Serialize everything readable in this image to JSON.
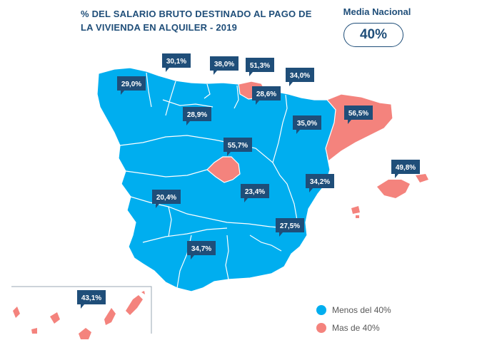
{
  "title": "% DEL SALARIO BRUTO DESTINADO AL PAGO DE LA VIVIENDA EN ALQUILER - 2019",
  "national": {
    "label": "Media Nacional",
    "value": "40%"
  },
  "colors": {
    "below": "#00aeef",
    "above": "#f4837d",
    "label_bg": "#1f4e79",
    "label_text": "#ffffff",
    "title": "#1f4e79"
  },
  "legend": [
    {
      "label": "Menos del 40%",
      "color": "#00aeef"
    },
    {
      "label": "Mas de 40%",
      "color": "#f4837d"
    }
  ],
  "regions": [
    {
      "value": "29,0%",
      "category": "below"
    },
    {
      "value": "30,1%",
      "category": "below"
    },
    {
      "value": "38,0%",
      "category": "below"
    },
    {
      "value": "51,3%",
      "category": "above"
    },
    {
      "value": "34,0%",
      "category": "below"
    },
    {
      "value": "28,6%",
      "category": "below"
    },
    {
      "value": "56,5%",
      "category": "above"
    },
    {
      "value": "28,9%",
      "category": "below"
    },
    {
      "value": "35,0%",
      "category": "below"
    },
    {
      "value": "55,7%",
      "category": "above"
    },
    {
      "value": "49,8%",
      "category": "above"
    },
    {
      "value": "34,2%",
      "category": "below"
    },
    {
      "value": "20,4%",
      "category": "below"
    },
    {
      "value": "23,4%",
      "category": "below"
    },
    {
      "value": "27,5%",
      "category": "below"
    },
    {
      "value": "34,7%",
      "category": "below"
    },
    {
      "value": "43,1%",
      "category": "above"
    }
  ]
}
